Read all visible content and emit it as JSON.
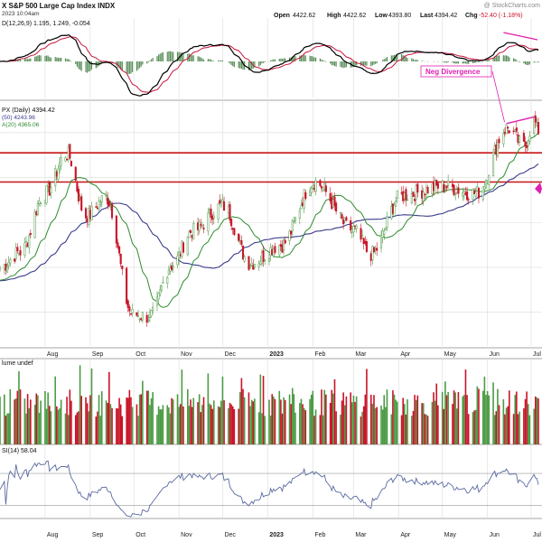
{
  "header": {
    "symbol_line": "X S&P 500 Large Cap Index INDX",
    "date_line": "2023 10:04am",
    "watermark": "@ StockCharts.com",
    "quote": {
      "open_label": "Open",
      "open": "4422.62",
      "high_label": "High",
      "high": "4422.62",
      "low_label": "Low",
      "low": "4393.80",
      "last_label": "Last",
      "last": "4394.42",
      "chg_label": "Chg",
      "chg": "-52.40 (-1.18%)"
    }
  },
  "panels": {
    "macd": {
      "label": "D(12,26,9) 1.195, 1.249, -0.054",
      "annotation": "Neg Divergence"
    },
    "price": {
      "label_main": "PX (Daily) 4394.42",
      "label_ma50": "(50) 4243.96",
      "label_ma20": "A(20) 4365.06"
    },
    "volume": {
      "label": "lume undef"
    },
    "rsi": {
      "label": "SI(14) 58.04"
    }
  },
  "x_axis": {
    "months": [
      "Aug",
      "Sep",
      "Oct",
      "Nov",
      "Dec",
      "2023",
      "Feb",
      "Mar",
      "Apr",
      "May",
      "Jun",
      "Jul"
    ]
  },
  "colors": {
    "up": "#4c9b45",
    "down": "#c81428",
    "ma20": "#2e8b2e",
    "ma50": "#3a3a8c",
    "horizontal_line": "#c81414",
    "annotation": "#e020b0",
    "macd_line": "#000000",
    "signal_line": "#c8143c",
    "histogram": "#3c7a3c",
    "rsi_line": "#5a6aa0",
    "grid": "#dcdcdc"
  },
  "chart_data": {
    "type": "candlestick",
    "x_range": [
      "2022-07-01",
      "2023-07-06"
    ],
    "price_ylim": [
      3450,
      4540
    ],
    "resistance_levels": [
      4310,
      4180
    ],
    "waypoints": [
      {
        "date": "2022-07-01",
        "close": 3800
      },
      {
        "date": "2022-07-15",
        "close": 3870
      },
      {
        "date": "2022-08-01",
        "close": 4130
      },
      {
        "date": "2022-08-16",
        "close": 4305
      },
      {
        "date": "2022-08-29",
        "close": 4030
      },
      {
        "date": "2022-09-12",
        "close": 4110
      },
      {
        "date": "2022-09-30",
        "close": 3590
      },
      {
        "date": "2022-10-12",
        "close": 3580
      },
      {
        "date": "2022-10-27",
        "close": 3810
      },
      {
        "date": "2022-11-10",
        "close": 3960
      },
      {
        "date": "2022-12-01",
        "close": 4075
      },
      {
        "date": "2022-12-20",
        "close": 3820
      },
      {
        "date": "2023-01-10",
        "close": 3900
      },
      {
        "date": "2023-02-02",
        "close": 4180
      },
      {
        "date": "2023-02-28",
        "close": 3970
      },
      {
        "date": "2023-03-13",
        "close": 3860
      },
      {
        "date": "2023-04-03",
        "close": 4120
      },
      {
        "date": "2023-05-01",
        "close": 4160
      },
      {
        "date": "2023-05-24",
        "close": 4130
      },
      {
        "date": "2023-06-15",
        "close": 4420
      },
      {
        "date": "2023-06-26",
        "close": 4340
      },
      {
        "date": "2023-07-03",
        "close": 4455
      },
      {
        "date": "2023-07-06",
        "close": 4394.42
      }
    ],
    "last_values": {
      "close": 4394.42,
      "ma50": 4243.96,
      "ma20": 4365.06,
      "rsi": 58.04,
      "macd": 1.195,
      "signal": 1.249,
      "hist": -0.054
    }
  }
}
